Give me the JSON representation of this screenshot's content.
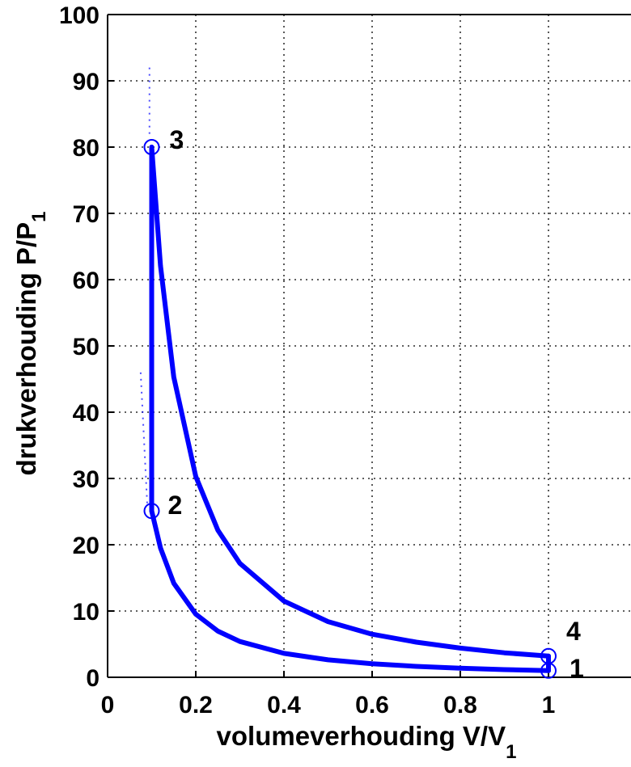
{
  "chart_data": {
    "type": "line",
    "xlabel": "volumeverhouding V/V",
    "xlabel_subscript": "1",
    "ylabel": "drukverhouding P/P",
    "ylabel_subscript": "1",
    "xlim": [
      0,
      1.2
    ],
    "ylim": [
      0,
      100
    ],
    "xticks": [
      "0",
      "0.2",
      "0.4",
      "0.6",
      "0.8",
      "1"
    ],
    "yticks": [
      "0",
      "10",
      "20",
      "30",
      "40",
      "50",
      "60",
      "70",
      "80",
      "90",
      "100"
    ],
    "grid": true,
    "gamma": 1.4,
    "line_color": "#0000ff",
    "points": [
      {
        "label": "1",
        "x": 1.0,
        "y": 1.0
      },
      {
        "label": "2",
        "x": 0.1,
        "y": 25.1
      },
      {
        "label": "3",
        "x": 0.1,
        "y": 80.0
      },
      {
        "label": "4",
        "x": 1.0,
        "y": 3.2
      }
    ],
    "series": [
      {
        "values": [
          [
            1.0,
            1.0
          ],
          [
            0.9,
            1.16
          ],
          [
            0.8,
            1.37
          ],
          [
            0.7,
            1.65
          ],
          [
            0.6,
            2.04
          ],
          [
            0.5,
            2.64
          ],
          [
            0.4,
            3.61
          ],
          [
            0.3,
            5.4
          ],
          [
            0.25,
            6.96
          ],
          [
            0.2,
            9.52
          ],
          [
            0.15,
            14.2
          ],
          [
            0.12,
            19.5
          ],
          [
            0.1,
            25.1
          ]
        ]
      },
      {
        "values": [
          [
            0.1,
            25.1
          ],
          [
            0.1,
            80.0
          ]
        ]
      },
      {
        "values": [
          [
            0.1,
            80.0
          ],
          [
            0.12,
            62.1
          ],
          [
            0.15,
            45.3
          ],
          [
            0.2,
            30.3
          ],
          [
            0.25,
            22.2
          ],
          [
            0.3,
            17.2
          ],
          [
            0.4,
            11.5
          ],
          [
            0.5,
            8.4
          ],
          [
            0.6,
            6.5
          ],
          [
            0.7,
            5.3
          ],
          [
            0.8,
            4.4
          ],
          [
            0.9,
            3.7
          ],
          [
            1.0,
            3.2
          ]
        ]
      },
      {
        "values": [
          [
            1.0,
            3.2
          ],
          [
            1.0,
            1.0
          ]
        ]
      }
    ]
  }
}
